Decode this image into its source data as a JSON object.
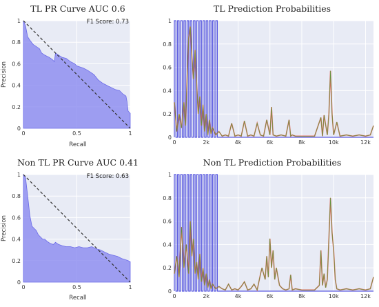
{
  "chart_data": [
    {
      "id": "tl-pr",
      "type": "area",
      "title": "TL PR Curve AUC 0.6",
      "xlabel": "Recall",
      "ylabel": "Precision",
      "xlim": [
        0,
        1
      ],
      "ylim": [
        0,
        1
      ],
      "xticks": [
        0,
        0.5,
        1
      ],
      "yticks": [
        0,
        0.2,
        0.4,
        0.6,
        0.8,
        1
      ],
      "annotation": "F1 Score: 0.73",
      "colors": {
        "fill": "#8f8ff0",
        "line": "#6a6ae8",
        "plot_bg": "#e8ebf5",
        "grid": "#ffffff"
      },
      "series": [
        {
          "x": [
            0,
            0.02,
            0.04,
            0.06,
            0.09,
            0.12,
            0.15,
            0.17,
            0.2,
            0.22,
            0.24,
            0.27,
            0.29,
            0.3,
            0.33,
            0.36,
            0.4,
            0.44,
            0.48,
            0.5,
            0.53,
            0.56,
            0.6,
            0.63,
            0.66,
            0.7,
            0.74,
            0.78,
            0.82,
            0.86,
            0.9,
            0.93,
            0.96,
            0.97,
            0.98,
            1,
            1
          ],
          "y": [
            1,
            0.95,
            0.85,
            0.82,
            0.78,
            0.76,
            0.74,
            0.7,
            0.68,
            0.67,
            0.66,
            0.64,
            0.62,
            0.7,
            0.68,
            0.66,
            0.65,
            0.62,
            0.6,
            0.58,
            0.57,
            0.56,
            0.54,
            0.52,
            0.5,
            0.45,
            0.42,
            0.4,
            0.38,
            0.36,
            0.35,
            0.32,
            0.3,
            0.25,
            0.16,
            0.14,
            0
          ]
        },
        {
          "style": "dashed",
          "x": [
            0,
            1
          ],
          "y": [
            1,
            0
          ]
        }
      ]
    },
    {
      "id": "tl-prob",
      "type": "line",
      "title": "TL Prediction Probabilities",
      "xlabel": "",
      "ylabel": "",
      "xlim": [
        0,
        12500
      ],
      "ylim": [
        0,
        1
      ],
      "xticks": [
        0,
        2000,
        4000,
        6000,
        8000,
        10000,
        12000
      ],
      "xticklabels": [
        "0",
        "2k",
        "4k",
        "6k",
        "8k",
        "10k",
        "12k"
      ],
      "yticks": [
        0,
        0.2,
        0.4,
        0.6,
        0.8,
        1
      ],
      "colors": {
        "square": "#5a5ae0",
        "prob": "#e05a4a",
        "prob2": "#4f9a3a",
        "plot_bg": "#e8ebf5",
        "grid": "#ffffff"
      },
      "series": [
        {
          "name": "",
          "kind": "square-wave",
          "period": 200,
          "x_start": 0,
          "x_end": 2800,
          "y_low": 0,
          "y_high": 1
        },
        {
          "name": "",
          "kind": "line",
          "x": [
            0,
            150,
            300,
            450,
            600,
            700,
            800,
            900,
            1000,
            1100,
            1200,
            1300,
            1400,
            1500,
            1600,
            1700,
            1800,
            1900,
            2000,
            2100,
            2200,
            2300,
            2400,
            2600,
            2800,
            3000,
            3200,
            3400,
            3600,
            3800,
            4000,
            4200,
            4400,
            4600,
            4800,
            5000,
            5200,
            5400,
            5600,
            5800,
            6000,
            6100,
            6200,
            6400,
            6700,
            7000,
            7200,
            7300,
            7400,
            7600,
            8000,
            8400,
            8800,
            9200,
            9300,
            9400,
            9600,
            9700,
            9800,
            9900,
            10000,
            10200,
            10400,
            10800,
            11200,
            11600,
            12000,
            12300,
            12500
          ],
          "y": [
            0.3,
            0.05,
            0.2,
            0.08,
            0.3,
            0.1,
            0.5,
            0.85,
            0.95,
            0.7,
            0.5,
            0.75,
            0.45,
            0.2,
            0.35,
            0.1,
            0.28,
            0.05,
            0.2,
            0.02,
            0.15,
            0.03,
            0.08,
            0.02,
            0.05,
            0.01,
            0.02,
            0.01,
            0.12,
            0.01,
            0.02,
            0.01,
            0.14,
            0.01,
            0.02,
            0.01,
            0.12,
            0.02,
            0.01,
            0.15,
            0.02,
            0.26,
            0.02,
            0.01,
            0.02,
            0.01,
            0.15,
            0.01,
            0.02,
            0.01,
            0.01,
            0.01,
            0.01,
            0.17,
            0.01,
            0.19,
            0.02,
            0.2,
            0.57,
            0.2,
            0.02,
            0.13,
            0.01,
            0.02,
            0.01,
            0.02,
            0.01,
            0.02,
            0.1
          ]
        }
      ]
    },
    {
      "id": "nontl-pr",
      "type": "area",
      "title": "Non TL PR Curve AUC 0.41",
      "xlabel": "Recall",
      "ylabel": "Precision",
      "xlim": [
        0,
        1
      ],
      "ylim": [
        0,
        1
      ],
      "xticks": [
        0,
        0.5,
        1
      ],
      "yticks": [
        0,
        0.2,
        0.4,
        0.6,
        0.8,
        1
      ],
      "annotation": "F1 Score: 0.63",
      "colors": {
        "fill": "#8f8ff0",
        "line": "#6a6ae8",
        "plot_bg": "#e8ebf5",
        "grid": "#ffffff"
      },
      "series": [
        {
          "x": [
            0,
            0.02,
            0.04,
            0.06,
            0.08,
            0.1,
            0.12,
            0.14,
            0.16,
            0.18,
            0.2,
            0.22,
            0.25,
            0.28,
            0.3,
            0.33,
            0.36,
            0.4,
            0.44,
            0.48,
            0.52,
            0.56,
            0.6,
            0.64,
            0.68,
            0.72,
            0.76,
            0.8,
            0.84,
            0.88,
            0.92,
            0.95,
            0.98,
            1,
            1
          ],
          "y": [
            1,
            0.97,
            0.8,
            0.62,
            0.52,
            0.5,
            0.48,
            0.44,
            0.42,
            0.4,
            0.4,
            0.38,
            0.36,
            0.35,
            0.37,
            0.35,
            0.34,
            0.33,
            0.33,
            0.32,
            0.33,
            0.32,
            0.32,
            0.33,
            0.31,
            0.3,
            0.28,
            0.26,
            0.25,
            0.24,
            0.22,
            0.21,
            0.2,
            0.19,
            0
          ]
        },
        {
          "style": "dashed",
          "x": [
            0,
            1
          ],
          "y": [
            1,
            0
          ]
        }
      ]
    },
    {
      "id": "nontl-prob",
      "type": "line",
      "title": "Non TL Prediction Probabilities",
      "xlabel": "",
      "ylabel": "",
      "xlim": [
        0,
        12500
      ],
      "ylim": [
        0,
        1
      ],
      "xticks": [
        0,
        2000,
        4000,
        6000,
        8000,
        10000,
        12000
      ],
      "xticklabels": [
        "0",
        "2k",
        "4k",
        "6k",
        "8k",
        "10k",
        "12k"
      ],
      "yticks": [
        0,
        0.2,
        0.4,
        0.6,
        0.8,
        1
      ],
      "colors": {
        "square": "#5a5ae0",
        "prob": "#e05a4a",
        "prob2": "#4f9a3a",
        "plot_bg": "#e8ebf5",
        "grid": "#ffffff"
      },
      "series": [
        {
          "name": "",
          "kind": "square-wave",
          "period": 200,
          "x_start": 0,
          "x_end": 2800,
          "y_low": 0,
          "y_high": 1
        },
        {
          "name": "",
          "kind": "line",
          "x": [
            0,
            150,
            300,
            450,
            600,
            750,
            900,
            1000,
            1100,
            1200,
            1300,
            1400,
            1500,
            1600,
            1700,
            1800,
            1900,
            2000,
            2100,
            2200,
            2300,
            2400,
            2600,
            2800,
            3000,
            3200,
            3400,
            3600,
            3800,
            4000,
            4200,
            4400,
            4600,
            4800,
            5000,
            5200,
            5400,
            5500,
            5600,
            5700,
            5800,
            5900,
            6000,
            6100,
            6200,
            6300,
            6400,
            6600,
            6800,
            7000,
            7200,
            7300,
            7400,
            7600,
            8000,
            8400,
            8800,
            9100,
            9200,
            9300,
            9400,
            9500,
            9600,
            9700,
            9800,
            9900,
            10000,
            10100,
            10200,
            10400,
            10800,
            11200,
            11600,
            12000,
            12300,
            12500
          ],
          "y": [
            0.15,
            0.3,
            0.12,
            0.55,
            0.2,
            0.4,
            0.15,
            0.6,
            0.3,
            0.45,
            0.15,
            0.25,
            0.1,
            0.32,
            0.08,
            0.2,
            0.05,
            0.15,
            0.03,
            0.1,
            0.02,
            0.06,
            0.02,
            0.04,
            0.02,
            0.01,
            0.06,
            0.01,
            0.02,
            0.01,
            0.04,
            0.08,
            0.01,
            0.02,
            0.06,
            0.01,
            0.14,
            0.2,
            0.15,
            0.1,
            0.3,
            0.12,
            0.45,
            0.2,
            0.35,
            0.1,
            0.2,
            0.05,
            0.02,
            0.01,
            0.02,
            0.14,
            0.01,
            0.02,
            0.01,
            0.01,
            0.01,
            0.05,
            0.35,
            0.05,
            0.15,
            0.03,
            0.1,
            0.45,
            0.8,
            0.5,
            0.35,
            0.1,
            0.02,
            0.01,
            0.02,
            0.01,
            0.02,
            0.01,
            0.02,
            0.12
          ]
        }
      ]
    }
  ]
}
